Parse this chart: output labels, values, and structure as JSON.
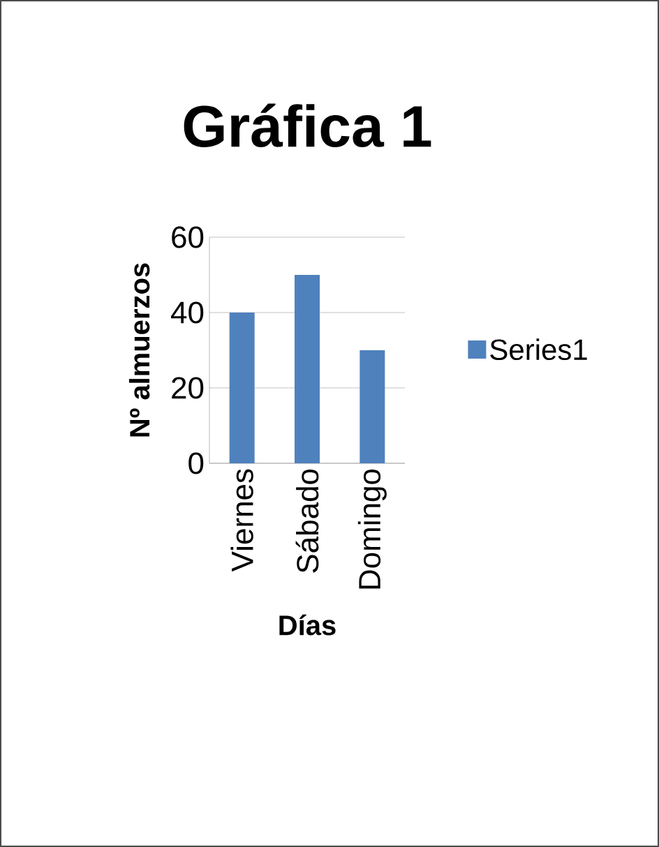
{
  "chart_data": {
    "type": "bar",
    "title": "Gráfica 1",
    "xlabel": "Días",
    "ylabel": "Nº almuerzos",
    "categories": [
      "Viernes",
      "Sábado",
      "Domingo"
    ],
    "series": [
      {
        "name": "Series1",
        "color": "#4f81bd",
        "values": [
          40,
          50,
          30
        ]
      }
    ],
    "ylim": [
      0,
      60
    ],
    "yticks": [
      0,
      20,
      40,
      60
    ],
    "grid": "y",
    "legend": "right"
  }
}
